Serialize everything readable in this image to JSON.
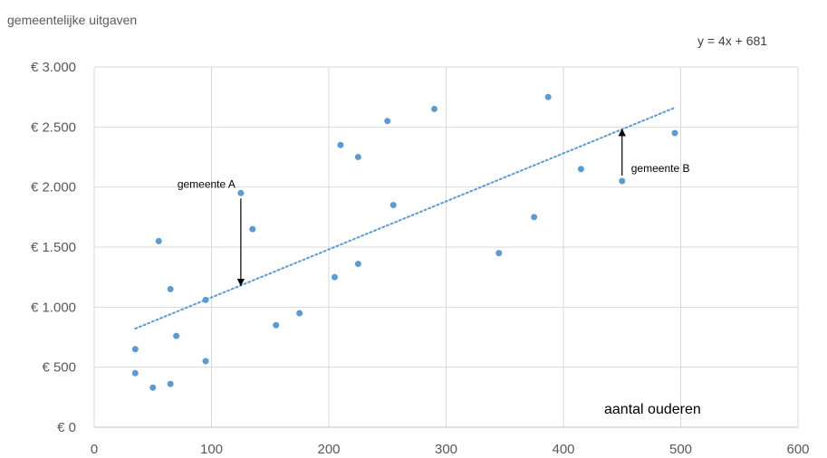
{
  "chart_data": {
    "type": "scatter",
    "ylabel": "gemeentelijke uitgaven",
    "xlabel": "aantal ouderen",
    "equation": "y = 4x + 681",
    "xlim": [
      0,
      600
    ],
    "ylim": [
      0,
      3000
    ],
    "x_ticks": [
      0,
      100,
      200,
      300,
      400,
      500,
      600
    ],
    "x_tick_labels": [
      "0",
      "100",
      "200",
      "300",
      "400",
      "500",
      "600"
    ],
    "y_ticks": [
      0,
      500,
      1000,
      1500,
      2000,
      2500,
      3000
    ],
    "y_tick_labels": [
      "€ 0",
      "€ 500",
      "€ 1.000",
      "€ 1.500",
      "€ 2.000",
      "€ 2.500",
      "€ 3.000"
    ],
    "grid": true,
    "point_color": "#5b9bd5",
    "trendline": {
      "slope": 4,
      "intercept": 681,
      "x_range": [
        35,
        495
      ],
      "color": "#5b9bd5",
      "style": "dotted"
    },
    "points": [
      {
        "x": 35,
        "y": 450
      },
      {
        "x": 35,
        "y": 650
      },
      {
        "x": 50,
        "y": 330
      },
      {
        "x": 55,
        "y": 1550
      },
      {
        "x": 65,
        "y": 360
      },
      {
        "x": 65,
        "y": 1150
      },
      {
        "x": 70,
        "y": 760
      },
      {
        "x": 95,
        "y": 550
      },
      {
        "x": 95,
        "y": 1060
      },
      {
        "x": 125,
        "y": 1950
      },
      {
        "x": 135,
        "y": 1650
      },
      {
        "x": 155,
        "y": 850
      },
      {
        "x": 175,
        "y": 950
      },
      {
        "x": 205,
        "y": 1250
      },
      {
        "x": 210,
        "y": 2350
      },
      {
        "x": 225,
        "y": 2250
      },
      {
        "x": 225,
        "y": 1360
      },
      {
        "x": 250,
        "y": 2550
      },
      {
        "x": 255,
        "y": 1850
      },
      {
        "x": 290,
        "y": 2650
      },
      {
        "x": 345,
        "y": 1450
      },
      {
        "x": 375,
        "y": 1750
      },
      {
        "x": 387,
        "y": 2750
      },
      {
        "x": 415,
        "y": 2150
      },
      {
        "x": 450,
        "y": 2050
      },
      {
        "x": 495,
        "y": 2450
      }
    ],
    "annotations": [
      {
        "text": "gemeente A",
        "point": {
          "x": 125,
          "y": 1950
        },
        "arrow_to": {
          "x": 125,
          "y": 1181
        }
      },
      {
        "text": "gemeente B",
        "point": {
          "x": 450,
          "y": 2050
        },
        "arrow_to": {
          "x": 450,
          "y": 2481
        }
      }
    ]
  }
}
